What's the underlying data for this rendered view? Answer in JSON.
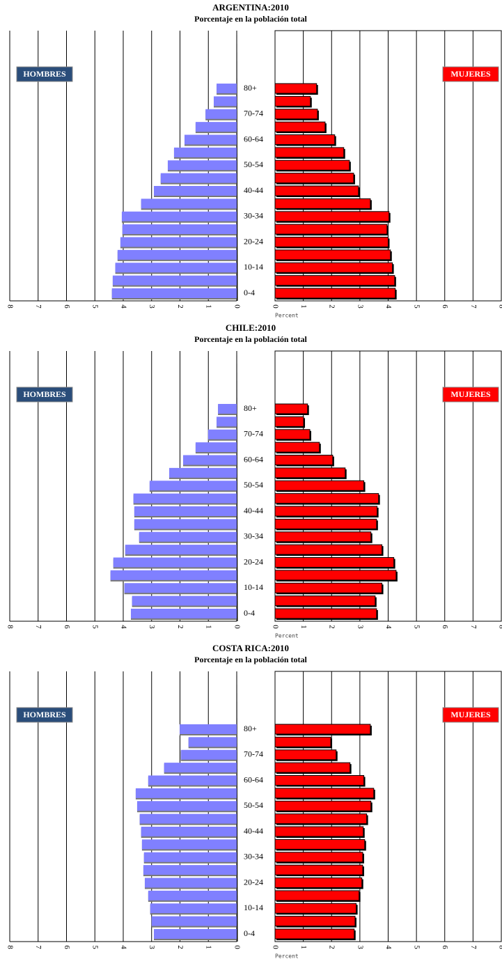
{
  "chart_data": [
    {
      "type": "pyramid",
      "title": "ARGENTINA:2010",
      "subtitle": "Porcentaje en la población total",
      "x_label": "Percent",
      "categories": [
        "0-4",
        null,
        "10-14",
        null,
        "20-24",
        null,
        "30-34",
        null,
        "40-44",
        null,
        "50-54",
        null,
        "60-64",
        null,
        "70-74",
        null,
        "80+"
      ],
      "series": [
        {
          "name": "HOMBRES",
          "color": "#8080ff",
          "legend_color": "#2a4d7a",
          "values": [
            4.4,
            4.37,
            4.28,
            4.2,
            4.1,
            4.03,
            4.05,
            3.37,
            2.92,
            2.68,
            2.43,
            2.21,
            1.84,
            1.45,
            1.1,
            0.81,
            0.71
          ]
        },
        {
          "name": "MUJERES",
          "color": "#ff0000",
          "legend_color": "#ff0000",
          "values": [
            4.25,
            4.23,
            4.15,
            4.08,
            4.0,
            3.96,
            4.03,
            3.37,
            2.95,
            2.78,
            2.63,
            2.43,
            2.11,
            1.77,
            1.5,
            1.25,
            1.47
          ]
        }
      ],
      "xlim": [
        0,
        8
      ],
      "xticks": [
        0,
        1,
        2,
        3,
        4,
        5,
        6,
        7,
        8
      ],
      "grid": true
    },
    {
      "type": "pyramid",
      "title": "CHILE:2010",
      "subtitle": "Porcentaje en la población total",
      "x_label": "Percent",
      "categories": [
        "0-4",
        null,
        "10-14",
        null,
        "20-24",
        null,
        "30-34",
        null,
        "40-44",
        null,
        "50-54",
        null,
        "60-64",
        null,
        "70-74",
        null,
        "80+"
      ],
      "series": [
        {
          "name": "HOMBRES",
          "color": "#8080ff",
          "legend_color": "#2a4d7a",
          "values": [
            3.73,
            3.69,
            3.96,
            4.45,
            4.35,
            3.93,
            3.44,
            3.61,
            3.61,
            3.64,
            3.07,
            2.38,
            1.89,
            1.45,
            1.01,
            0.71,
            0.66
          ]
        },
        {
          "name": "MUJERES",
          "color": "#ff0000",
          "legend_color": "#ff0000",
          "values": [
            3.59,
            3.54,
            3.78,
            4.28,
            4.2,
            3.78,
            3.39,
            3.59,
            3.61,
            3.66,
            3.14,
            2.48,
            2.04,
            1.57,
            1.23,
            1.01,
            1.15
          ]
        }
      ],
      "xlim": [
        0,
        8
      ],
      "xticks": [
        0,
        1,
        2,
        3,
        4,
        5,
        6,
        7,
        8
      ],
      "grid": true
    },
    {
      "type": "pyramid",
      "title": "COSTA RICA:2010",
      "subtitle": "Porcentaje en la población total",
      "x_label": "Percent",
      "categories": [
        "0-4",
        null,
        "10-14",
        null,
        "20-24",
        null,
        "30-34",
        null,
        "40-44",
        null,
        "50-54",
        null,
        "60-64",
        null,
        "70-74",
        null,
        "80+"
      ],
      "series": [
        {
          "name": "HOMBRES",
          "color": "#8080ff",
          "legend_color": "#2a4d7a",
          "values": [
            2.92,
            3.0,
            3.05,
            3.12,
            3.24,
            3.29,
            3.27,
            3.34,
            3.37,
            3.42,
            3.51,
            3.56,
            3.12,
            2.56,
            1.97,
            1.7,
            2.01
          ]
        },
        {
          "name": "MUJERES",
          "color": "#ff0000",
          "legend_color": "#ff0000",
          "values": [
            2.8,
            2.83,
            2.87,
            2.97,
            3.07,
            3.1,
            3.1,
            3.17,
            3.12,
            3.24,
            3.39,
            3.49,
            3.14,
            2.65,
            2.16,
            1.97,
            3.37
          ]
        }
      ],
      "xlim": [
        0,
        8
      ],
      "xticks": [
        0,
        1,
        2,
        3,
        4,
        5,
        6,
        7,
        8
      ],
      "grid": true
    }
  ]
}
